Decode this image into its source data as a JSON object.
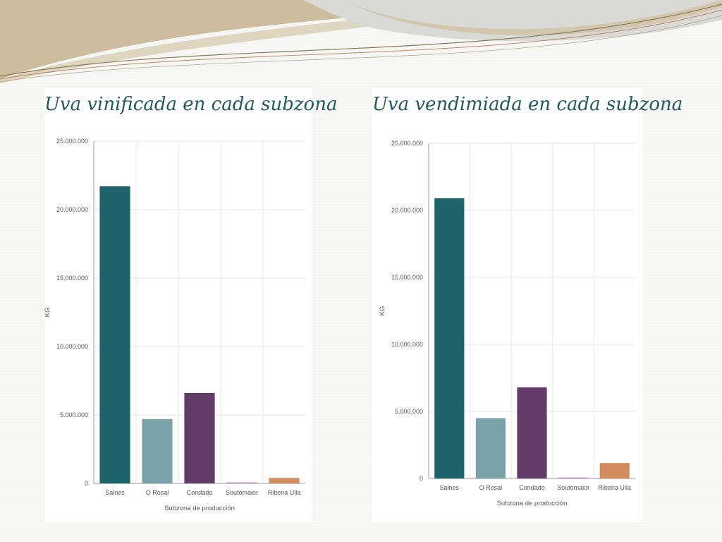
{
  "colors": {
    "bars": [
      "#1f646b",
      "#79a3a8",
      "#623b69",
      "#c496cf",
      "#d38c5e"
    ],
    "title": "#245a5e",
    "grid": "#e6e6e6",
    "axis": "#9a9a9a"
  },
  "charts": {
    "left": {
      "title": "Uva vinificada en cada subzona"
    },
    "right": {
      "title": "Uva vendimiada en cada subzona"
    }
  },
  "chart_data": [
    {
      "type": "bar",
      "title": "Uva vinificada en cada subzona",
      "xlabel": "Subzona de producción",
      "ylabel": "KG",
      "categories": [
        "Salnes",
        "O Rosal",
        "Condado",
        "Soutomaior",
        "Ribeira Ulla"
      ],
      "values": [
        21700000,
        4700000,
        6600000,
        60000,
        400000
      ],
      "ylim": [
        0,
        25000000
      ],
      "yticks": [
        0,
        5000000,
        10000000,
        15000000,
        20000000,
        25000000
      ],
      "ytick_labels": [
        "0",
        "5.000.000",
        "10.000.000",
        "15.000.000",
        "20.000.000",
        "25.000.000"
      ],
      "grid": true,
      "legend": "none"
    },
    {
      "type": "bar",
      "title": "Uva vendimiada en cada subzona",
      "xlabel": "Subzona de producción",
      "ylabel": "KG",
      "categories": [
        "Salnes",
        "O Rosal",
        "Condado",
        "Soutomaior",
        "Ribeira Ulla"
      ],
      "values": [
        20900000,
        4500000,
        6800000,
        70000,
        1150000
      ],
      "ylim": [
        0,
        25000000
      ],
      "yticks": [
        0,
        5000000,
        10000000,
        15000000,
        20000000,
        25000000
      ],
      "ytick_labels": [
        "0",
        "5.000.000",
        "10.000.000",
        "15.000.000",
        "20.000.000",
        "25.000.000"
      ],
      "grid": true,
      "legend": "none"
    }
  ]
}
